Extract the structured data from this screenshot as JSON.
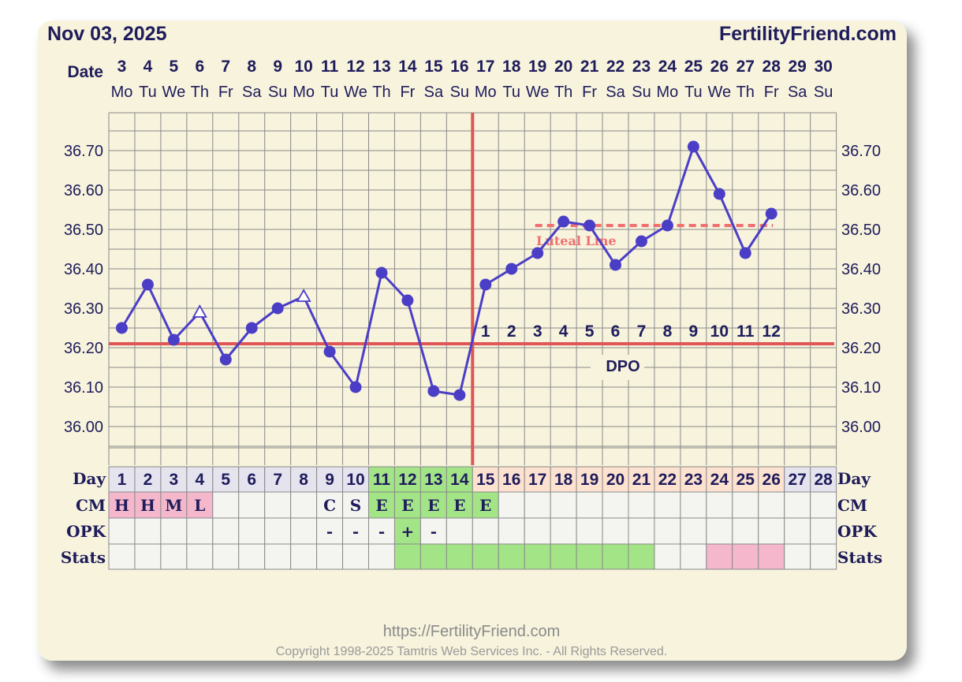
{
  "header": {
    "date": "Nov 03, 2025",
    "brand": "FertilityFriend.com"
  },
  "row_labels": {
    "date": "Date",
    "day": "Day",
    "cm": "CM",
    "opk": "OPK",
    "stats": "Stats"
  },
  "date_numbers": [
    "3",
    "4",
    "5",
    "6",
    "7",
    "8",
    "9",
    "10",
    "11",
    "12",
    "13",
    "14",
    "15",
    "16",
    "17",
    "18",
    "19",
    "20",
    "21",
    "22",
    "23",
    "24",
    "25",
    "26",
    "27",
    "28",
    "29",
    "30"
  ],
  "weekdays": [
    "Mo",
    "Tu",
    "We",
    "Th",
    "Fr",
    "Sa",
    "Su",
    "Mo",
    "Tu",
    "We",
    "Th",
    "Fr",
    "Sa",
    "Su",
    "Mo",
    "Tu",
    "We",
    "Th",
    "Fr",
    "Sa",
    "Su",
    "Mo",
    "Tu",
    "We",
    "Th",
    "Fr",
    "Sa",
    "Su"
  ],
  "cycle_days": [
    "1",
    "2",
    "3",
    "4",
    "5",
    "6",
    "7",
    "8",
    "9",
    "10",
    "11",
    "12",
    "13",
    "14",
    "15",
    "16",
    "17",
    "18",
    "19",
    "20",
    "21",
    "22",
    "23",
    "24",
    "25",
    "26",
    "27",
    "28"
  ],
  "cm_values": [
    "H",
    "H",
    "M",
    "L",
    "",
    "",
    "",
    "",
    "C",
    "S",
    "E",
    "E",
    "E",
    "E",
    "E",
    "",
    "",
    "",
    "",
    "",
    "",
    "",
    "",
    "",
    "",
    "",
    "",
    ""
  ],
  "opk_values": [
    "",
    "",
    "",
    "",
    "",
    "",
    "",
    "",
    "-",
    "-",
    "-",
    "+",
    "-",
    "",
    "",
    "",
    "",
    "",
    "",
    "",
    "",
    "",
    "",
    "",
    "",
    "",
    "",
    ""
  ],
  "dpo_numbers": [
    "1",
    "2",
    "3",
    "4",
    "5",
    "6",
    "7",
    "8",
    "9",
    "10",
    "11",
    "12"
  ],
  "dpo_label": "DPO",
  "luteal_label": "Luteal Line",
  "colors": {
    "temp_line": "#4b3ec6",
    "coverline": "#e05555",
    "ovulation": "#e05555",
    "luteal": "#f07070",
    "fertile_green": "#a3e487",
    "menses_pink": "#f4b7cc",
    "luteal_peach": "#fde2cf",
    "navy": "#1f1c5c"
  },
  "footer": {
    "url": "https://FertilityFriend.com",
    "copyright": "Copyright 1998-2025 Tamtris Web Services Inc. - All Rights Reserved."
  },
  "chart_data": {
    "type": "line",
    "x": [
      "1",
      "2",
      "3",
      "4",
      "5",
      "6",
      "7",
      "8",
      "9",
      "10",
      "11",
      "12",
      "13",
      "14",
      "15",
      "16",
      "17",
      "18",
      "19",
      "20",
      "21",
      "22",
      "23",
      "24",
      "25",
      "26",
      "27",
      "28"
    ],
    "series": [
      {
        "values": [
          36.25,
          36.36,
          36.22,
          36.29,
          36.17,
          36.25,
          36.3,
          36.33,
          36.19,
          36.1,
          36.39,
          36.32,
          36.09,
          36.08,
          36.36,
          36.4,
          36.44,
          36.52,
          36.51,
          36.41,
          36.47,
          36.51,
          36.71,
          36.59,
          36.44,
          36.54,
          null,
          null
        ],
        "markers": [
          "dot",
          "dot",
          "dot",
          "open-triangle",
          "dot",
          "dot",
          "dot",
          "open-triangle",
          "dot",
          "dot",
          "dot",
          "dot",
          "dot",
          "dot",
          "dot",
          "dot",
          "dot",
          "dot",
          "dot",
          "dot",
          "dot",
          "dot",
          "dot",
          "dot",
          "dot",
          "dot",
          "",
          ""
        ]
      }
    ],
    "yticks": [
      "36.00",
      "36.10",
      "36.20",
      "36.30",
      "36.40",
      "36.50",
      "36.60",
      "36.70"
    ],
    "ylim": [
      35.95,
      36.8
    ],
    "coverline": 36.21,
    "ovulation_day": 14,
    "luteal_line": {
      "value": 36.51,
      "from_day": 17,
      "to_day": 26
    },
    "grid": true
  }
}
